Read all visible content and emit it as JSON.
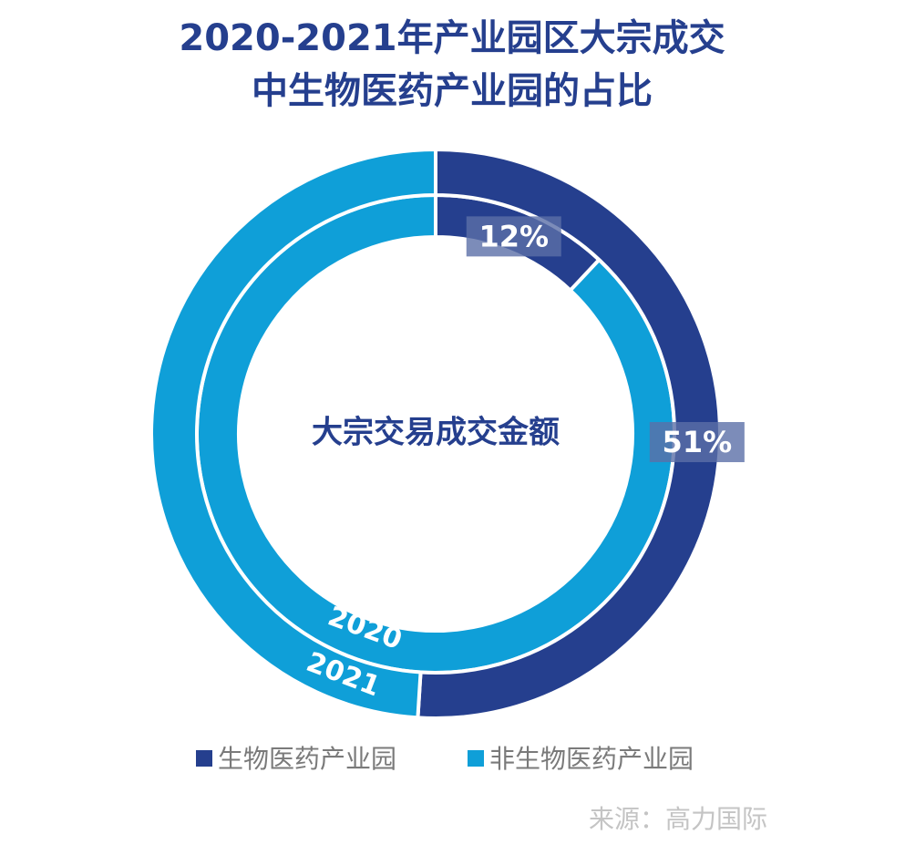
{
  "chart_data": {
    "type": "donut",
    "title": [
      "2020-2021年产业园区大宗成交",
      "中生物医药产业园的占比"
    ],
    "center_label": "大宗交易成交金额",
    "categories": [
      "2020",
      "2021"
    ],
    "series": [
      {
        "name": "生物医药产业园",
        "color": "#253f8e",
        "values": [
          12,
          51
        ],
        "value_labels": [
          "12%",
          "51%"
        ]
      },
      {
        "name": "非生物医药产业园",
        "color": "#0f9fd8",
        "values": [
          88,
          49
        ]
      }
    ],
    "source": "来源：高力国际"
  }
}
